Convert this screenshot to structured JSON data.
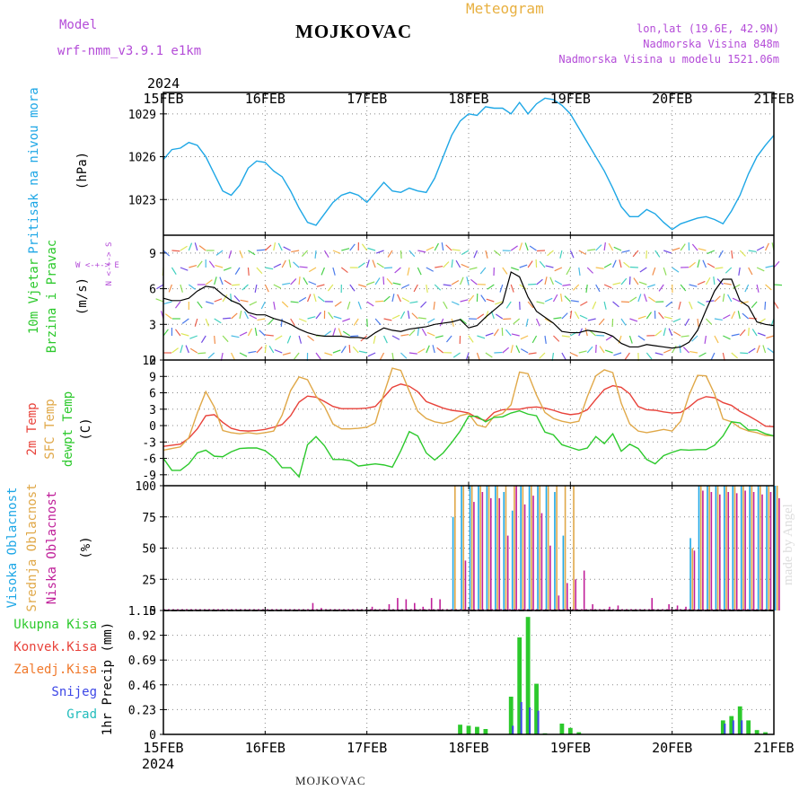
{
  "header": {
    "model_label": "Model",
    "model_value": "wrf-nmm_v3.9.1  e1km",
    "station": "MOJKOVAC",
    "product": "Meteogram",
    "lonlat": "lon,lat (19.6E, 42.9N)",
    "elevation": "Nadmorska Visina 848m",
    "model_elevation": "Nadmorska Visina u modelu 1521.06m"
  },
  "footer": {
    "station": "MOJKOVAC",
    "credit": "made by Angel"
  },
  "colors": {
    "pressure": "#1ea7e6",
    "temp2m": "#e8423a",
    "sfc": "#e0a848",
    "dewpt": "#2cc92c",
    "cloud_high": "#1ea7e6",
    "cloud_mid": "#e0a848",
    "cloud_low": "#c0209a",
    "precip_total": "#2cc92c",
    "precip_conv": "#e8423a",
    "precip_frz": "#f0782a",
    "snow": "#3c46e6",
    "graupel": "#22bcbc",
    "violet_text": "#b44cd8",
    "orange_text": "#e8b040"
  },
  "chart_data": [
    {
      "id": "pressure",
      "type": "line",
      "ylabel_main": "Pritisak na nivou mora",
      "unit": "(hPa)",
      "x_labels": [
        "15FEB",
        "16FEB",
        "17FEB",
        "18FEB",
        "19FEB",
        "20FEB",
        "21FEB"
      ],
      "top_year": "2024",
      "ylim": [
        1020.5,
        1030.5
      ],
      "yticks": [
        "1023",
        "1026",
        "1029"
      ],
      "series": [
        {
          "values": [
            1025.8,
            1026.5,
            1026.6,
            1027.0,
            1026.8,
            1026.0,
            1024.8,
            1023.6,
            1023.3,
            1024.0,
            1025.2,
            1025.7,
            1025.6,
            1025.0,
            1024.6,
            1023.6,
            1022.4,
            1021.4,
            1021.2,
            1022.0,
            1022.8,
            1023.3,
            1023.5,
            1023.3,
            1022.8,
            1023.5,
            1024.2,
            1023.6,
            1023.5,
            1023.8,
            1023.6,
            1023.5,
            1024.5,
            1026.0,
            1027.5,
            1028.5,
            1029.0,
            1028.9,
            1029.5,
            1029.4,
            1029.4,
            1029.0,
            1029.8,
            1029.0,
            1029.7,
            1030.1,
            1030.0,
            1029.6,
            1029.0,
            1028.0,
            1027.0,
            1026.0,
            1025.0,
            1023.8,
            1022.5,
            1021.8,
            1021.8,
            1022.3,
            1022.0,
            1021.4,
            1020.9,
            1021.3,
            1021.5,
            1021.7,
            1021.8,
            1021.6,
            1021.3,
            1022.2,
            1023.3,
            1024.8,
            1026.0,
            1026.8,
            1027.5
          ]
        }
      ]
    },
    {
      "id": "wind",
      "type": "line",
      "ylabel_main": "10m Vjetar",
      "ylabel_sub": "Brzina i Pravac",
      "unit": "(m/s)",
      "ylim": [
        0,
        10.5
      ],
      "yticks": [
        "0",
        "3",
        "6",
        "9"
      ],
      "direction_key": "W <-+-> E",
      "direction_key_vertical": "N <-+-> S",
      "series": [
        {
          "values": [
            5.2,
            5.0,
            5.0,
            5.2,
            5.8,
            6.2,
            6.1,
            5.5,
            5.0,
            4.7,
            4.0,
            3.8,
            3.8,
            3.5,
            3.3,
            3.0,
            2.6,
            2.3,
            2.1,
            2.0,
            2.0,
            2.0,
            1.9,
            1.9,
            1.8,
            2.3,
            2.7,
            2.5,
            2.4,
            2.6,
            2.7,
            2.8,
            3.0,
            3.1,
            3.2,
            3.4,
            2.7,
            2.9,
            3.6,
            4.2,
            4.8,
            7.4,
            7.0,
            5.3,
            4.1,
            3.6,
            3.1,
            2.4,
            2.3,
            2.3,
            2.5,
            2.4,
            2.3,
            2.0,
            1.4,
            1.1,
            1.1,
            1.3,
            1.2,
            1.1,
            1.0,
            1.1,
            1.5,
            2.5,
            4.2,
            5.8,
            6.8,
            6.8,
            5.0,
            4.5,
            3.2,
            3.0,
            2.9
          ]
        }
      ]
    },
    {
      "id": "temperature",
      "type": "line",
      "ylabel_main": "2m Temp",
      "ylabel_sfc": "SFC Temp",
      "ylabel_dew": "dewpt Temp",
      "unit": "(C)",
      "ylim": [
        -11,
        12
      ],
      "yticks": [
        "-9",
        "-6",
        "-3",
        "0",
        "3",
        "6",
        "9",
        "12"
      ],
      "series": [
        {
          "values": [
            -3.8,
            -3.6,
            -3.4,
            -2.3,
            -0.6,
            1.8,
            2.0,
            0.6,
            -0.5,
            -0.9,
            -1.0,
            -0.9,
            -0.7,
            -0.3,
            0.2,
            1.8,
            4.3,
            5.4,
            5.2,
            4.4,
            3.5,
            3.1,
            3.1,
            3.1,
            3.2,
            3.5,
            5.2,
            7.0,
            7.6,
            7.2,
            6.2,
            4.4,
            3.8,
            3.2,
            2.8,
            2.6,
            2.3,
            1.4,
            0.9,
            2.4,
            2.9,
            3.0,
            3.0,
            3.3,
            3.4,
            3.2,
            2.8,
            2.3,
            2.0,
            2.2,
            2.9,
            4.8,
            6.6,
            7.3,
            7.0,
            5.8,
            3.5,
            2.9,
            2.8,
            2.5,
            2.3,
            2.4,
            3.4,
            4.7,
            5.3,
            5.1,
            4.2,
            3.7,
            2.6,
            1.8,
            0.9,
            -0.1,
            -0.2
          ]
        },
        {
          "values": [
            -4.5,
            -4.2,
            -3.9,
            -2.2,
            2.3,
            6.2,
            3.4,
            -0.9,
            -1.3,
            -1.5,
            -1.3,
            -1.5,
            -1.3,
            -1.0,
            1.9,
            6.4,
            8.9,
            8.4,
            5.4,
            3.5,
            0.3,
            -0.6,
            -0.6,
            -0.5,
            -0.3,
            0.5,
            5.8,
            10.5,
            10.1,
            6.3,
            2.6,
            1.3,
            0.7,
            0.4,
            0.8,
            1.8,
            2.2,
            0.1,
            -0.3,
            1.7,
            2.2,
            3.8,
            9.8,
            9.5,
            5.6,
            2.4,
            1.3,
            0.8,
            0.5,
            0.8,
            5.3,
            9.1,
            10.2,
            9.7,
            4.1,
            0.3,
            -1.0,
            -1.3,
            -1.0,
            -0.7,
            -1.0,
            0.8,
            5.6,
            9.2,
            9.1,
            5.8,
            1.2,
            0.7,
            -0.4,
            -1.0,
            -1.3,
            -1.8,
            -1.9
          ]
        },
        {
          "values": [
            -6.0,
            -8.2,
            -8.2,
            -7.0,
            -5.0,
            -4.5,
            -5.6,
            -5.7,
            -4.8,
            -4.2,
            -4.1,
            -4.1,
            -4.6,
            -5.8,
            -7.7,
            -7.7,
            -9.4,
            -3.5,
            -2.0,
            -3.7,
            -6.2,
            -6.2,
            -6.4,
            -7.4,
            -7.2,
            -7.0,
            -7.2,
            -7.6,
            -4.6,
            -1.1,
            -1.9,
            -5.0,
            -6.3,
            -5.0,
            -3.1,
            -1.0,
            1.7,
            1.7,
            0.7,
            1.5,
            1.6,
            2.3,
            2.7,
            2.1,
            1.8,
            -1.2,
            -1.7,
            -3.5,
            -4.0,
            -4.5,
            -4.1,
            -2.0,
            -3.3,
            -1.5,
            -4.7,
            -3.4,
            -4.2,
            -6.2,
            -7.0,
            -5.5,
            -4.9,
            -4.4,
            -4.5,
            -4.4,
            -4.4,
            -3.6,
            -1.9,
            0.7,
            0.5,
            -0.8,
            -0.8,
            -1.5,
            -1.9
          ]
        }
      ]
    },
    {
      "id": "clouds",
      "type": "bar",
      "ylabel_high": "Visoka Oblacnost",
      "ylabel_mid": "Srednja Oblacnost",
      "ylabel_low": "Niska Oblacnost",
      "unit": "(%)",
      "ylim": [
        0,
        100
      ],
      "yticks": [
        "0",
        "25",
        "50",
        "75",
        "100"
      ],
      "series": [
        {
          "name": "high",
          "values": [
            0,
            0,
            0,
            0,
            0,
            0,
            0,
            0,
            0,
            0,
            0,
            0,
            0,
            0,
            0,
            0,
            0,
            0,
            0,
            0,
            0,
            0,
            0,
            0,
            0,
            0,
            0,
            0,
            0,
            0,
            0,
            0,
            0,
            0,
            75,
            100,
            100,
            100,
            100,
            100,
            95,
            80,
            100,
            100,
            100,
            100,
            95,
            60,
            0,
            0,
            0,
            0,
            0,
            0,
            0,
            0,
            0,
            0,
            0,
            0,
            0,
            0,
            58,
            100,
            100,
            100,
            100,
            100,
            100,
            100,
            100,
            100,
            100
          ]
        },
        {
          "name": "mid",
          "values": [
            0,
            0,
            0,
            0,
            0,
            0,
            0,
            0,
            0,
            0,
            0,
            0,
            0,
            0,
            0,
            0,
            0,
            0,
            0,
            0,
            0,
            0,
            0,
            0,
            0,
            0,
            0,
            0,
            0,
            0,
            0,
            0,
            0,
            0,
            100,
            100,
            100,
            100,
            100,
            100,
            100,
            100,
            100,
            100,
            100,
            100,
            100,
            100,
            100,
            0,
            0,
            0,
            0,
            0,
            0,
            0,
            0,
            0,
            0,
            0,
            0,
            0,
            50,
            100,
            100,
            100,
            100,
            100,
            100,
            100,
            100,
            100,
            100
          ]
        },
        {
          "name": "low",
          "values": [
            0,
            0,
            0,
            0,
            0,
            0,
            0,
            0,
            0,
            0,
            0,
            0,
            0,
            0,
            0,
            0,
            0,
            6,
            2,
            0,
            0,
            0,
            0,
            0,
            3,
            0,
            5,
            10,
            9,
            6,
            3,
            10,
            9,
            0,
            0,
            40,
            87,
            95,
            90,
            90,
            60,
            100,
            85,
            92,
            78,
            52,
            12,
            22,
            25,
            32,
            5,
            0,
            3,
            4,
            0,
            0,
            0,
            10,
            0,
            5,
            4,
            3,
            48,
            96,
            95,
            93,
            95,
            94,
            96,
            95,
            93,
            95,
            90
          ]
        }
      ]
    },
    {
      "id": "precip",
      "type": "bar",
      "ylabel_total": "Ukupna Kisa",
      "ylabel_conv": "Konvek.Kisa",
      "ylabel_frz": "Zaledj.Kisa",
      "ylabel_snow": "Snijeg",
      "ylabel_grad": "Grad",
      "ylabel_main": "1hr Precip",
      "unit": "(mm)",
      "x_labels": [
        "15FEB",
        "16FEB",
        "17FEB",
        "18FEB",
        "19FEB",
        "20FEB",
        "21FEB"
      ],
      "bottom_year": "2024",
      "ylim": [
        0,
        1.15
      ],
      "yticks": [
        "0",
        "0.23",
        "0.46",
        "0.69",
        "0.92",
        "1.15"
      ],
      "series": [
        {
          "name": "total",
          "values": [
            0,
            0,
            0,
            0,
            0,
            0,
            0,
            0,
            0,
            0,
            0,
            0,
            0,
            0,
            0,
            0,
            0,
            0,
            0,
            0,
            0,
            0,
            0,
            0,
            0,
            0,
            0,
            0,
            0,
            0,
            0,
            0,
            0,
            0,
            0,
            0.09,
            0.08,
            0.07,
            0.05,
            0,
            0,
            0.35,
            0.9,
            1.09,
            0.47,
            0.01,
            0,
            0.1,
            0.06,
            0.02,
            0,
            0,
            0,
            0,
            0,
            0,
            0,
            0,
            0,
            0,
            0,
            0,
            0,
            0,
            0,
            0,
            0.13,
            0.17,
            0.26,
            0.13,
            0.04,
            0.02,
            0
          ]
        },
        {
          "name": "snow",
          "values": [
            0,
            0,
            0,
            0,
            0,
            0,
            0,
            0,
            0,
            0,
            0,
            0,
            0,
            0,
            0,
            0,
            0,
            0,
            0,
            0,
            0,
            0,
            0,
            0,
            0,
            0,
            0,
            0,
            0,
            0,
            0,
            0,
            0,
            0,
            0,
            0,
            0,
            0,
            0,
            0,
            0,
            0.08,
            0.3,
            0.25,
            0.22,
            0,
            0,
            0,
            0,
            0,
            0,
            0,
            0,
            0,
            0,
            0,
            0,
            0,
            0,
            0,
            0,
            0,
            0,
            0,
            0,
            0,
            0.1,
            0.13,
            0.13,
            0,
            0,
            0,
            0
          ]
        }
      ]
    }
  ]
}
